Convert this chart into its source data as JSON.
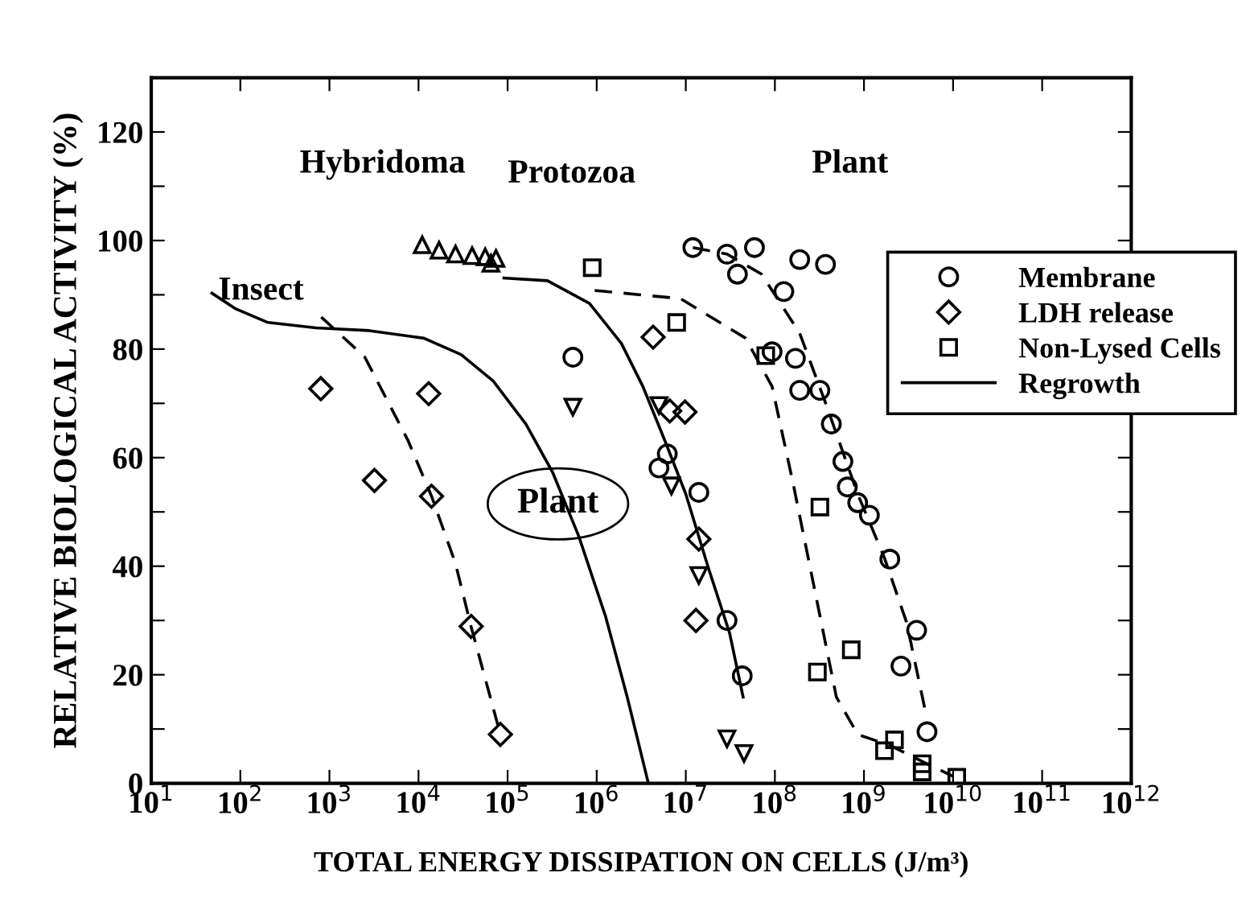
{
  "chart_data": {
    "type": "scatter",
    "xlabel": "TOTAL ENERGY DISSIPATION ON CELLS (J/m³)",
    "ylabel": "RELATIVE BIOLOGICAL ACTIVITY (%)",
    "log": "x",
    "xlim": [
      10,
      1000000000000.0
    ],
    "xticks": [
      {
        "value": 10,
        "label": "10$^{1}$"
      },
      {
        "value": 100,
        "label": "10$^{2}$"
      },
      {
        "value": 1000,
        "label": "10$^{3}$"
      },
      {
        "value": 10000.0,
        "label": "10$^{4}$"
      },
      {
        "value": 100000.0,
        "label": "10$^{5}$"
      },
      {
        "value": 1000000.0,
        "label": "10$^{6}$"
      },
      {
        "value": 10000000.0,
        "label": "10$^{7}$"
      },
      {
        "value": 100000000.0,
        "label": "10$^{8}$"
      },
      {
        "value": 1000000000.0,
        "label": "10$^{9}$"
      },
      {
        "value": 10000000000.0,
        "label": "10$^{10}$"
      },
      {
        "value": 100000000000.0,
        "label": "10$^{11}$"
      },
      {
        "value": 1000000000000.0,
        "label": "10$^{12}$"
      }
    ],
    "ylim": [
      0,
      130
    ],
    "yticks": [
      0,
      {
        "value": 10,
        "label": null
      },
      20,
      {
        "value": 30,
        "label": null
      },
      40,
      {
        "value": 50,
        "label": null
      },
      60,
      {
        "value": 70,
        "label": null
      },
      80,
      {
        "value": 90,
        "label": null
      },
      100,
      {
        "value": 110,
        "label": null
      },
      120
    ],
    "grid": false,
    "legend": "right",
    "annotations": [
      "Hybridoma",
      "Protozoa",
      "Plant",
      "Insect",
      "Plant"
    ],
    "series": [
      {
        "name": "Membrane",
        "marker": "circle",
        "color": "#000000",
        "x": [
          540000.0,
          6200000.0,
          5000000.0,
          14000000.0,
          29000000.0,
          43000000.0
        ],
        "values": [
          78.5,
          60.7,
          58.1,
          53.6,
          30.0,
          19.8
        ]
      },
      {
        "marker": "circle",
        "color": "#000000",
        "x": [
          12000000.0,
          29000000.0,
          38000000.0,
          59000000.0,
          190000000.0,
          370000000.0,
          126000000.0,
          93000000.0,
          170000000.0,
          190000000.0,
          320000000.0,
          430000000.0,
          580000000.0,
          650000000.0,
          850000000.0,
          1150000000.0,
          1950000000.0,
          3900000000.0,
          2600000000.0,
          5100000000.0
        ],
        "values": [
          98.7,
          97.5,
          93.8,
          98.7,
          96.5,
          95.6,
          90.6,
          79.5,
          78.3,
          72.4,
          72.4,
          66.2,
          59.3,
          54.6,
          51.7,
          49.4,
          41.3,
          28.2,
          21.6,
          9.5
        ]
      },
      {
        "marker": "triangle",
        "color": "#000000",
        "x": [
          11000.0,
          17000.0,
          26000.0,
          40000.0,
          56000.0,
          74000.0
        ],
        "values": [
          99.2,
          98.2,
          97.5,
          97.2,
          97.0,
          96.7
        ]
      },
      {
        "name": "LDH release",
        "marker": "diamond",
        "color": "#000000",
        "x": [
          800,
          13000.0,
          3200,
          14000.0,
          39000.0,
          83000.0,
          4300000.0,
          6600000.0,
          9800000.0,
          14000000.0,
          13000000.0
        ],
        "values": [
          72.7,
          71.8,
          55.8,
          52.9,
          28.9,
          9.0,
          82.2,
          68.6,
          68.4,
          45.0,
          30.0
        ]
      },
      {
        "marker": "triangle_down",
        "color": "#000000",
        "x": [
          540000.0,
          5000000.0,
          6900000.0,
          14000000.0,
          29000000.0,
          45000000.0
        ],
        "values": [
          69.3,
          69.6,
          54.8,
          38.3,
          8.2,
          5.5
        ]
      },
      {
        "marker": "triangle",
        "color": "#000000",
        "x": [
          65000.0
        ],
        "values": [
          95.8
        ]
      },
      {
        "name": "Non-Lysed Cells",
        "marker": "square",
        "color": "#000000",
        "x": [
          890000.0,
          7900000.0,
          79000000.0,
          320000000.0,
          300000000.0,
          720000000.0,
          1700000000.0,
          2200000000.0,
          4500000000.0,
          4500000000.0,
          11000000000.0
        ],
        "values": [
          95.0,
          84.9,
          78.8,
          50.9,
          20.5,
          24.6,
          6.0,
          8.0,
          3.6,
          2.1,
          1.1
        ]
      },
      {
        "name": "Regrowth",
        "type": "line",
        "line_style": "solid",
        "color": "#000000",
        "x": [
          48,
          89,
          204,
          708,
          2800,
          11500.0,
          30000.0,
          69000.0,
          160000.0,
          320000.0,
          630000.0,
          1260000.0,
          2200000.0,
          3800000.0
        ],
        "values": [
          90.3,
          87.4,
          84.9,
          83.9,
          83.4,
          82.0,
          79.0,
          74.1,
          66.2,
          57.3,
          45.5,
          30.7,
          15.9,
          0
        ]
      },
      {
        "type": "line",
        "line_style": "solid",
        "color": "#000000",
        "x": [
          91000.0,
          280000.0,
          830000.0,
          1900000.0,
          3300000.0,
          5800000.0,
          10000000.0,
          18000000.0,
          31000000.0,
          44000000.0
        ],
        "values": [
          93.1,
          92.6,
          88.4,
          81.0,
          73.1,
          63.2,
          53.3,
          39.6,
          27.7,
          15.9
        ]
      },
      {
        "type": "line",
        "line_style": "dashed",
        "color": "#000000",
        "x": [
          810,
          2500,
          7600,
          14000.0,
          26000.0,
          39000.0,
          83000.0
        ],
        "values": [
          85.9,
          78.5,
          63.2,
          52.9,
          40.5,
          28.8,
          9.0
        ]
      },
      {
        "type": "line",
        "line_style": "dashed",
        "color": "#000000",
        "x": [
          12000000.0,
          29000000.0,
          71000000.0,
          190000000.0,
          370000000.0,
          850000000.0,
          1700000000.0,
          3000000000.0,
          4800000000.0
        ],
        "values": [
          98.7,
          97.5,
          93.8,
          82.9,
          70.1,
          53.3,
          41.5,
          29.7,
          13.9
        ]
      },
      {
        "type": "line",
        "line_style": "dashed",
        "color": "#000000",
        "x": [
          950000.0,
          8700000.0,
          47000000.0,
          93000000.0,
          160000000.0,
          280000000.0,
          490000000.0,
          850000000.0,
          1950000000.0,
          5100000000.0,
          10000000000.0
        ],
        "values": [
          90.8,
          89.3,
          82.0,
          73.1,
          55.3,
          35.6,
          15.9,
          9.0,
          7.0,
          3.6,
          1.3
        ]
      }
    ]
  }
}
